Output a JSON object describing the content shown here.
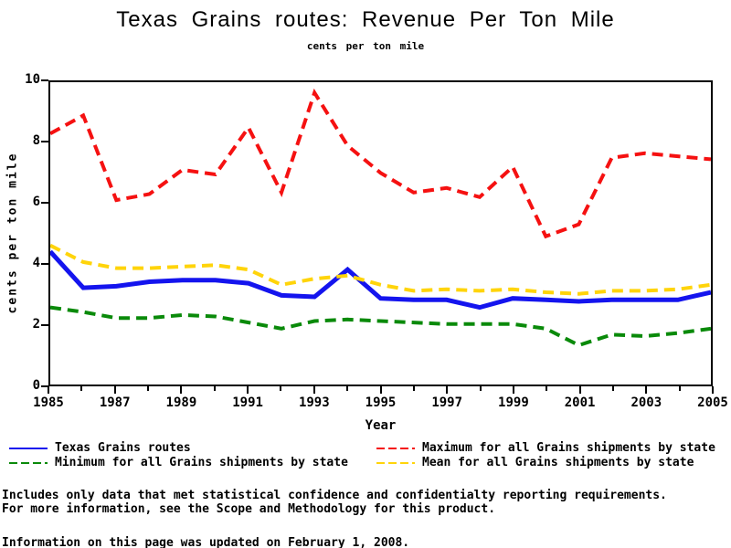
{
  "chart_data": {
    "type": "line",
    "title": "Texas Grains routes: Revenue Per Ton Mile",
    "subtitle": "cents per ton mile",
    "xlabel": "Year",
    "ylabel": "cents per ton mile",
    "xlim": [
      1985,
      2005
    ],
    "ylim": [
      0,
      10
    ],
    "x_ticks": [
      1985,
      1987,
      1989,
      1991,
      1993,
      1995,
      1997,
      1999,
      2001,
      2003,
      2005
    ],
    "y_ticks": [
      0,
      2,
      4,
      6,
      8,
      10
    ],
    "grid": false,
    "legend_position": "bottom",
    "x": [
      1985,
      1986,
      1987,
      1988,
      1989,
      1990,
      1991,
      1992,
      1993,
      1994,
      1995,
      1996,
      1997,
      1998,
      1999,
      2000,
      2001,
      2002,
      2003,
      2004,
      2005
    ],
    "series": [
      {
        "name": "Texas Grains routes",
        "color": "#1414ee",
        "style": "solid",
        "values": [
          4.4,
          3.2,
          3.25,
          3.4,
          3.45,
          3.45,
          3.35,
          2.95,
          2.9,
          3.8,
          2.85,
          2.8,
          2.8,
          2.55,
          2.85,
          2.8,
          2.75,
          2.8,
          2.8,
          2.8,
          3.05
        ]
      },
      {
        "name": "Maximum for all Grains shipments by state",
        "color": "#f51111",
        "style": "dashed",
        "values": [
          8.3,
          8.9,
          6.1,
          6.3,
          7.1,
          6.95,
          8.5,
          6.35,
          9.65,
          7.9,
          7.0,
          6.35,
          6.5,
          6.2,
          7.2,
          4.9,
          5.3,
          7.5,
          7.65,
          7.55,
          7.45
        ]
      },
      {
        "name": "Minimum for all Grains shipments by state",
        "color": "#0a8a0a",
        "style": "dashed",
        "values": [
          2.55,
          2.4,
          2.2,
          2.2,
          2.3,
          2.25,
          2.05,
          1.85,
          2.1,
          2.15,
          2.1,
          2.05,
          2.0,
          2.0,
          2.0,
          1.85,
          1.3,
          1.65,
          1.6,
          1.7,
          1.85
        ]
      },
      {
        "name": "Mean for all Grains shipments by state",
        "color": "#ffd40a",
        "style": "dashed",
        "values": [
          4.6,
          4.05,
          3.85,
          3.85,
          3.9,
          3.95,
          3.8,
          3.3,
          3.5,
          3.6,
          3.3,
          3.1,
          3.15,
          3.1,
          3.15,
          3.05,
          3.0,
          3.1,
          3.1,
          3.15,
          3.3
        ]
      }
    ]
  },
  "footnotes": {
    "line1": "Includes only data that met statistical confidence and confidentialty reporting requirements.",
    "line2": "For more information, see the Scope and Methodology for this product.",
    "updated": "Information on this page was updated on February 1, 2008."
  }
}
